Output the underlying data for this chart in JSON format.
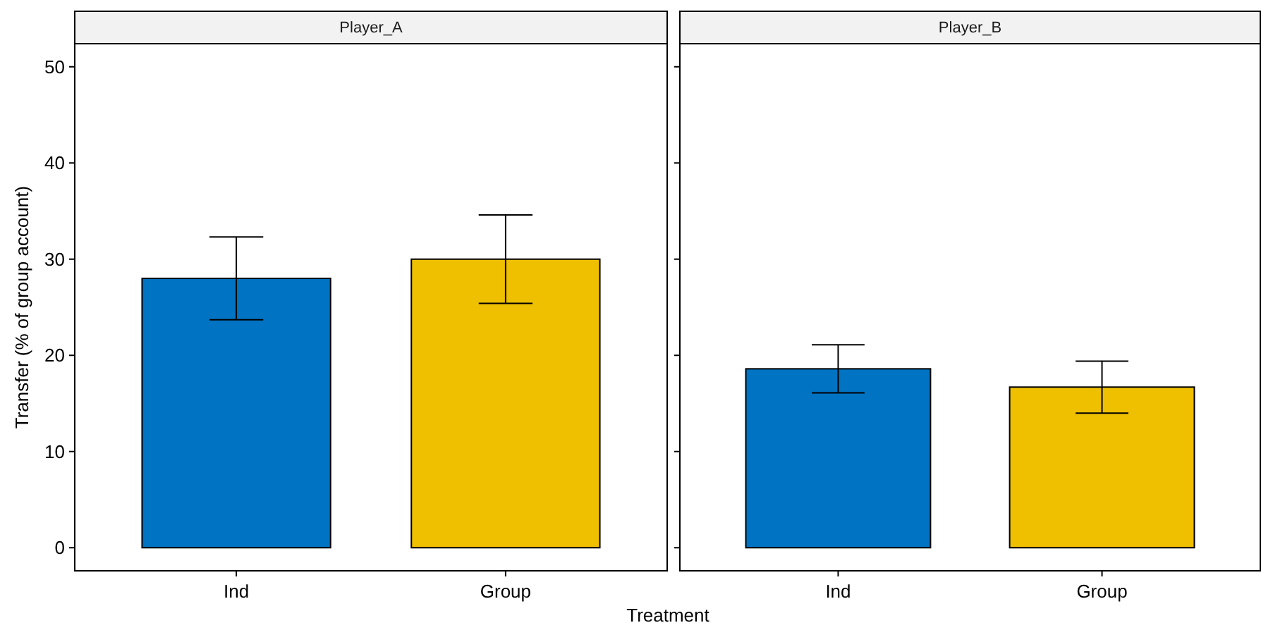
{
  "chart_data": [
    {
      "type": "bar",
      "title": "Player_A",
      "xlabel": "Treatment",
      "ylabel": "Transfer (% of group account)",
      "categories": [
        "Ind",
        "Group"
      ],
      "values": [
        28,
        30
      ],
      "colors": [
        "#0073c2",
        "#efc000"
      ],
      "errors": [
        4.3,
        4.6
      ],
      "ylim": [
        -2.4,
        52.4
      ],
      "yticks": [
        0,
        10,
        20,
        30,
        40,
        50
      ],
      "grid": false
    },
    {
      "type": "bar",
      "title": "Player_B",
      "categories": [
        "Ind",
        "Group"
      ],
      "values": [
        18.6,
        16.7
      ],
      "colors": [
        "#0073c2",
        "#efc000"
      ],
      "errors": [
        2.5,
        2.7
      ],
      "ylim": [
        -2.4,
        52.4
      ],
      "yticks": [
        0,
        10,
        20,
        30,
        40,
        50
      ],
      "tick_labels": "x",
      "grid": false
    }
  ]
}
